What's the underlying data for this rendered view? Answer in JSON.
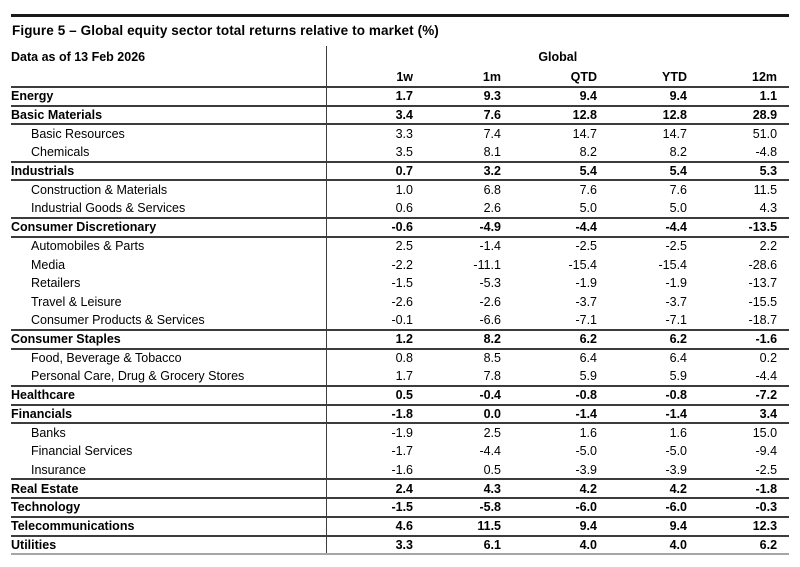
{
  "header": {
    "title": "Figure 5 – Global equity sector total returns relative to market (%)",
    "data_as_of": "Data as of 13 Feb 2026",
    "region": "Global"
  },
  "colors": {
    "text": "#000000",
    "top_rule": "#1a1a1a",
    "grid_line": "#3c3c3c",
    "bottom_edge": "#a6a6a6",
    "background": "#ffffff"
  },
  "chart_data": {
    "type": "table",
    "title": "Global equity sector total returns relative to market (%)",
    "columns": [
      "1w",
      "1m",
      "QTD",
      "YTD",
      "12m"
    ],
    "rows": [
      {
        "label": "Energy",
        "level": "sector",
        "values": [
          "1.7",
          "9.3",
          "9.4",
          "9.4",
          "1.1"
        ]
      },
      {
        "label": "Basic Materials",
        "level": "sector",
        "values": [
          "3.4",
          "7.6",
          "12.8",
          "12.8",
          "28.9"
        ]
      },
      {
        "label": "Basic Resources",
        "level": "sub",
        "values": [
          "3.3",
          "7.4",
          "14.7",
          "14.7",
          "51.0"
        ]
      },
      {
        "label": "Chemicals",
        "level": "sub",
        "values": [
          "3.5",
          "8.1",
          "8.2",
          "8.2",
          "-4.8"
        ]
      },
      {
        "label": "Industrials",
        "level": "sector",
        "values": [
          "0.7",
          "3.2",
          "5.4",
          "5.4",
          "5.3"
        ]
      },
      {
        "label": "Construction & Materials",
        "level": "sub",
        "values": [
          "1.0",
          "6.8",
          "7.6",
          "7.6",
          "11.5"
        ]
      },
      {
        "label": "Industrial Goods & Services",
        "level": "sub",
        "values": [
          "0.6",
          "2.6",
          "5.0",
          "5.0",
          "4.3"
        ]
      },
      {
        "label": "Consumer Discretionary",
        "level": "sector",
        "values": [
          "-0.6",
          "-4.9",
          "-4.4",
          "-4.4",
          "-13.5"
        ]
      },
      {
        "label": "Automobiles & Parts",
        "level": "sub",
        "values": [
          "2.5",
          "-1.4",
          "-2.5",
          "-2.5",
          "2.2"
        ]
      },
      {
        "label": "Media",
        "level": "sub",
        "values": [
          "-2.2",
          "-11.1",
          "-15.4",
          "-15.4",
          "-28.6"
        ]
      },
      {
        "label": "Retailers",
        "level": "sub",
        "values": [
          "-1.5",
          "-5.3",
          "-1.9",
          "-1.9",
          "-13.7"
        ]
      },
      {
        "label": "Travel & Leisure",
        "level": "sub",
        "values": [
          "-2.6",
          "-2.6",
          "-3.7",
          "-3.7",
          "-15.5"
        ]
      },
      {
        "label": "Consumer Products & Services",
        "level": "sub",
        "values": [
          "-0.1",
          "-6.6",
          "-7.1",
          "-7.1",
          "-18.7"
        ]
      },
      {
        "label": "Consumer Staples",
        "level": "sector",
        "values": [
          "1.2",
          "8.2",
          "6.2",
          "6.2",
          "-1.6"
        ]
      },
      {
        "label": "Food, Beverage & Tobacco",
        "level": "sub",
        "values": [
          "0.8",
          "8.5",
          "6.4",
          "6.4",
          "0.2"
        ]
      },
      {
        "label": "Personal Care, Drug & Grocery Stores",
        "level": "sub",
        "values": [
          "1.7",
          "7.8",
          "5.9",
          "5.9",
          "-4.4"
        ]
      },
      {
        "label": "Healthcare",
        "level": "sector",
        "values": [
          "0.5",
          "-0.4",
          "-0.8",
          "-0.8",
          "-7.2"
        ]
      },
      {
        "label": "Financials",
        "level": "sector",
        "values": [
          "-1.8",
          "0.0",
          "-1.4",
          "-1.4",
          "3.4"
        ]
      },
      {
        "label": "Banks",
        "level": "sub",
        "values": [
          "-1.9",
          "2.5",
          "1.6",
          "1.6",
          "15.0"
        ]
      },
      {
        "label": "Financial Services",
        "level": "sub",
        "values": [
          "-1.7",
          "-4.4",
          "-5.0",
          "-5.0",
          "-9.4"
        ]
      },
      {
        "label": "Insurance",
        "level": "sub",
        "values": [
          "-1.6",
          "0.5",
          "-3.9",
          "-3.9",
          "-2.5"
        ]
      },
      {
        "label": "Real Estate",
        "level": "sector",
        "values": [
          "2.4",
          "4.3",
          "4.2",
          "4.2",
          "-1.8"
        ]
      },
      {
        "label": "Technology",
        "level": "sector",
        "values": [
          "-1.5",
          "-5.8",
          "-6.0",
          "-6.0",
          "-0.3"
        ]
      },
      {
        "label": "Telecommunications",
        "level": "sector",
        "values": [
          "4.6",
          "11.5",
          "9.4",
          "9.4",
          "12.3"
        ]
      },
      {
        "label": "Utilities",
        "level": "sector",
        "values": [
          "3.3",
          "6.1",
          "4.0",
          "4.0",
          "6.2"
        ]
      }
    ]
  }
}
